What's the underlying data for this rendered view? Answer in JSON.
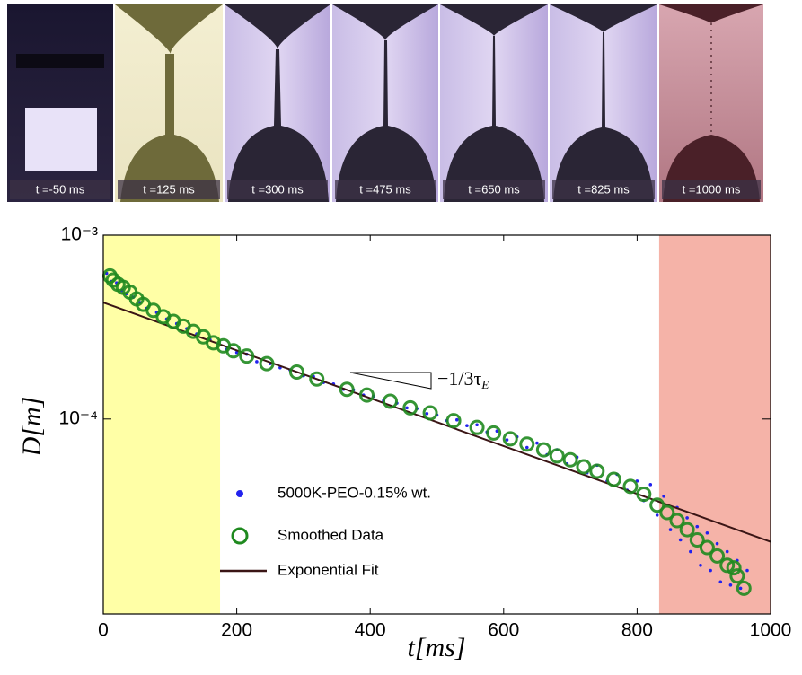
{
  "photo_labels": [
    "t =-50 ms",
    "t =125 ms",
    "t =300 ms",
    "t =475 ms",
    "t =650 ms",
    "t =825 ms",
    "t =1000 ms"
  ],
  "chart_data": {
    "type": "scatter",
    "xlabel": "t[ms]",
    "ylabel": "D[m]",
    "annotation": {
      "text": "−1/3τ",
      "subscript": "E"
    },
    "xlim": [
      0,
      1000
    ],
    "xticks": [
      0,
      200,
      400,
      600,
      800,
      1000
    ],
    "ylim": [
      8.7e-06,
      0.001
    ],
    "yscale": "log",
    "yticks": [
      {
        "value": 0.0001,
        "label": "10⁻⁴"
      },
      {
        "value": 0.001,
        "label": "10⁻³"
      }
    ],
    "legend": "lower left",
    "shaded_regions": [
      {
        "xlim": [
          0,
          175
        ],
        "color": "#ffffa6"
      },
      {
        "xlim": [
          833,
          1000
        ],
        "color": "#f5b3a8"
      }
    ],
    "series": [
      {
        "name": "5000K-PEO-0.15% wt.",
        "kind": "dots",
        "color": "#2222ee",
        "x": [
          5,
          12,
          20,
          28,
          35,
          45,
          55,
          65,
          80,
          95,
          110,
          125,
          140,
          160,
          185,
          200,
          215,
          230,
          250,
          265,
          280,
          300,
          315,
          330,
          345,
          360,
          375,
          390,
          405,
          420,
          440,
          455,
          470,
          485,
          500,
          515,
          530,
          545,
          560,
          575,
          590,
          605,
          620,
          635,
          650,
          665,
          680,
          695,
          710,
          725,
          740,
          755,
          770,
          785,
          800,
          810,
          820,
          830,
          840,
          850,
          860,
          865,
          875,
          880,
          890,
          895,
          905,
          910,
          920,
          925,
          935,
          940,
          950,
          955,
          965
        ],
        "values": [
          0.00062,
          0.00056,
          0.00055,
          0.0005,
          0.00048,
          0.00046,
          0.00043,
          0.0004,
          0.00038,
          0.00035,
          0.00033,
          0.00031,
          0.00029,
          0.00027,
          0.00024,
          0.00023,
          0.000225,
          0.000205,
          0.0002,
          0.00019,
          0.000185,
          0.000172,
          0.00017,
          0.000158,
          0.000155,
          0.000145,
          0.000144,
          0.000135,
          0.000133,
          0.000126,
          0.000122,
          0.000115,
          0.000114,
          0.000107,
          0.000105,
          9.8e-05,
          9.9e-05,
          9.2e-05,
          9.3e-05,
          8.5e-05,
          8.6e-05,
          7.7e-05,
          8e-05,
          7e-05,
          7.4e-05,
          6.4e-05,
          6.8e-05,
          5.7e-05,
          6.2e-05,
          5.1e-05,
          5.6e-05,
          4.6e-05,
          5e-05,
          4.1e-05,
          4.6e-05,
          3.6e-05,
          4.4e-05,
          3e-05,
          3.8e-05,
          2.5e-05,
          3.3e-05,
          2.2e-05,
          2.9e-05,
          1.9e-05,
          2.6e-05,
          1.6e-05,
          2.4e-05,
          1.5e-05,
          2.1e-05,
          1.3e-05,
          1.9e-05,
          1.25e-05,
          1.7e-05,
          1.2e-05,
          1.5e-05
        ]
      },
      {
        "name": "Smoothed Data",
        "kind": "circles",
        "color": "#1f8a1f",
        "x": [
          10,
          15,
          22,
          30,
          40,
          50,
          60,
          75,
          90,
          105,
          120,
          135,
          150,
          165,
          180,
          195,
          215,
          245,
          290,
          320,
          365,
          395,
          430,
          460,
          490,
          525,
          560,
          585,
          610,
          635,
          660,
          680,
          700,
          720,
          740,
          765,
          790,
          810,
          830,
          845,
          860,
          875,
          890,
          905,
          920,
          935,
          945,
          950,
          960
        ],
        "values": [
          0.0006,
          0.00057,
          0.00054,
          0.00052,
          0.00049,
          0.00045,
          0.00042,
          0.00039,
          0.00036,
          0.00034,
          0.00032,
          0.0003,
          0.00028,
          0.00026,
          0.00025,
          0.000235,
          0.00022,
          0.0002,
          0.00018,
          0.000165,
          0.000145,
          0.000135,
          0.000125,
          0.000115,
          0.000108,
          9.8e-05,
          9e-05,
          8.4e-05,
          7.8e-05,
          7.3e-05,
          6.8e-05,
          6.3e-05,
          6e-05,
          5.5e-05,
          5.2e-05,
          4.7e-05,
          4.3e-05,
          3.9e-05,
          3.4e-05,
          3.1e-05,
          2.8e-05,
          2.5e-05,
          2.2e-05,
          2e-05,
          1.8e-05,
          1.6e-05,
          1.55e-05,
          1.4e-05,
          1.2e-05
        ]
      },
      {
        "name": "Exponential Fit",
        "kind": "line",
        "color": "#3a1515",
        "x": [
          0,
          1000
        ],
        "values": [
          0.00043,
          2.15e-05
        ]
      }
    ]
  }
}
